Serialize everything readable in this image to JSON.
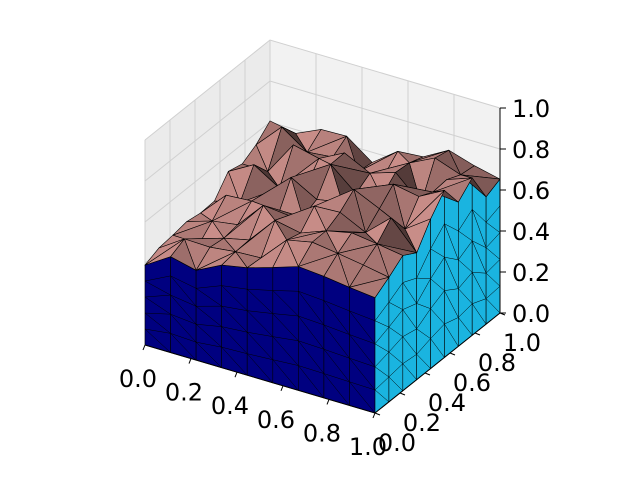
{
  "chart_data": {
    "type": "3d-surface",
    "title": "",
    "xlabel": "",
    "ylabel": "",
    "zlabel": "",
    "xlim": [
      0,
      1
    ],
    "ylim": [
      0,
      1
    ],
    "zlim": [
      0,
      1
    ],
    "grid": true,
    "x_ticks": [
      "0.0",
      "0.2",
      "0.4",
      "0.6",
      "0.8",
      "1.0"
    ],
    "y_ticks": [
      "0.0",
      "0.2",
      "0.4",
      "0.6",
      "0.8",
      "1.0"
    ],
    "z_ticks": [
      "0.0",
      "0.2",
      "0.4",
      "0.6",
      "0.8",
      "1.0"
    ],
    "surface": {
      "x": [
        0,
        0.25,
        0.5,
        0.75,
        1.0
      ],
      "y": [
        0,
        0.25,
        0.5,
        0.75,
        1.0
      ],
      "z": [
        [
          0.42,
          0.47,
          0.55,
          0.62,
          0.56
        ],
        [
          0.46,
          0.52,
          0.6,
          0.7,
          0.66
        ],
        [
          0.44,
          0.58,
          0.64,
          0.72,
          0.75
        ],
        [
          0.52,
          0.61,
          0.68,
          0.62,
          0.7
        ],
        [
          0.58,
          0.66,
          0.6,
          0.72,
          0.68
        ]
      ]
    },
    "colors": {
      "top_surface": "#a97773",
      "front_face": "#000080",
      "side_face": "#1ab4e0",
      "edges": "#000000",
      "pane": "#f2f2f2",
      "grid": "#d0d0d0"
    }
  }
}
